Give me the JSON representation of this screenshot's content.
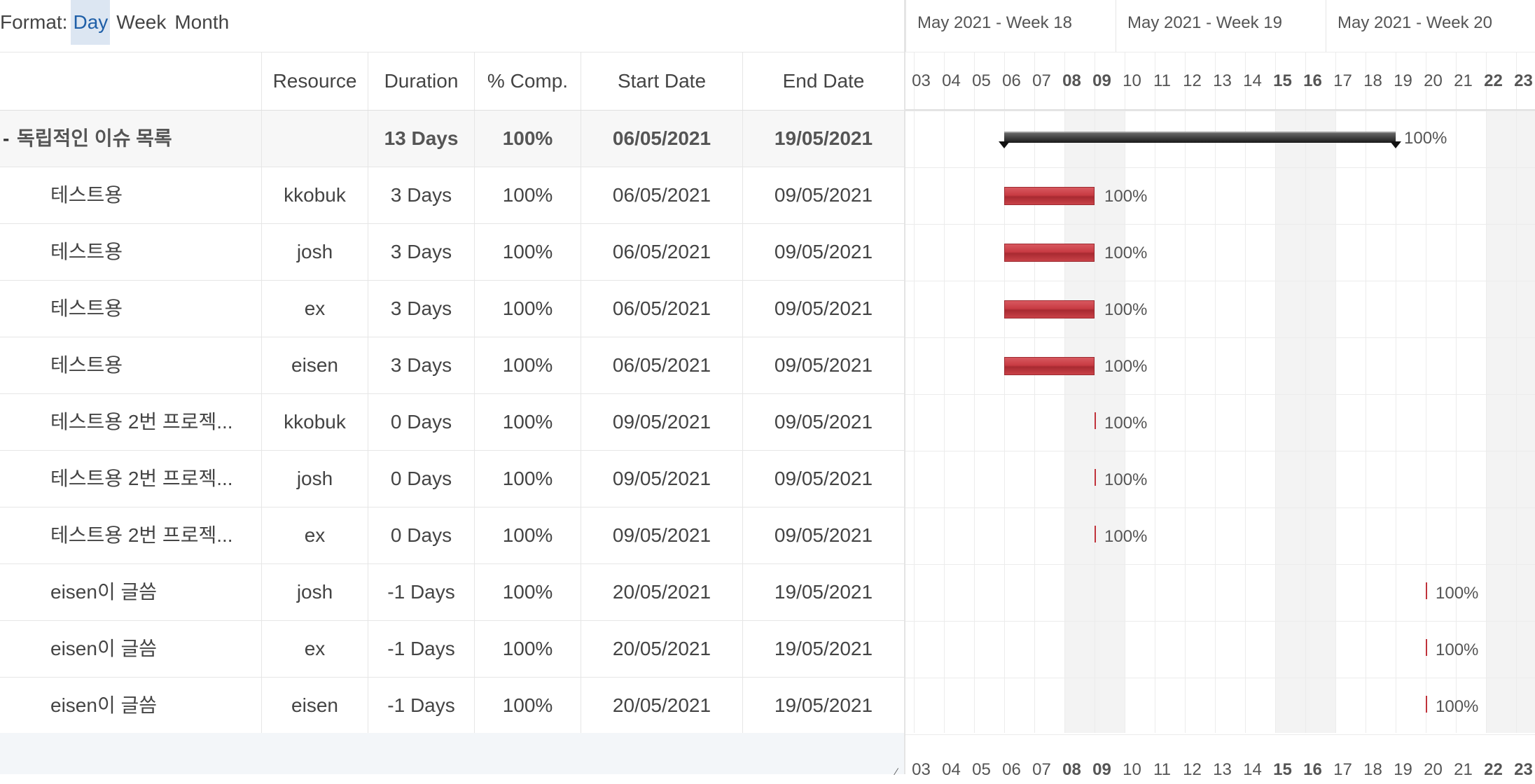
{
  "format": {
    "label": "Format:",
    "options": [
      "Day",
      "Week",
      "Month"
    ],
    "selected": "Day"
  },
  "columns": {
    "name": "",
    "resource": "Resource",
    "duration": "Duration",
    "comp": "% Comp.",
    "start": "Start Date",
    "end": "End Date"
  },
  "group": {
    "toggle": "-",
    "name": "독립적인 이슈 목록",
    "resource": "",
    "duration": "13 Days",
    "comp": "100%",
    "start": "06/05/2021",
    "end": "19/05/2021",
    "bar_label": "100%"
  },
  "tasks": [
    {
      "name": "테스트용",
      "resource": "kkobuk",
      "duration": "3 Days",
      "comp": "100%",
      "start": "06/05/2021",
      "end": "09/05/2021",
      "bar_label": "100%"
    },
    {
      "name": "테스트용",
      "resource": "josh",
      "duration": "3 Days",
      "comp": "100%",
      "start": "06/05/2021",
      "end": "09/05/2021",
      "bar_label": "100%"
    },
    {
      "name": "테스트용",
      "resource": "ex",
      "duration": "3 Days",
      "comp": "100%",
      "start": "06/05/2021",
      "end": "09/05/2021",
      "bar_label": "100%"
    },
    {
      "name": "테스트용",
      "resource": "eisen",
      "duration": "3 Days",
      "comp": "100%",
      "start": "06/05/2021",
      "end": "09/05/2021",
      "bar_label": "100%"
    },
    {
      "name": "테스트용 2번 프로젝...",
      "resource": "kkobuk",
      "duration": "0 Days",
      "comp": "100%",
      "start": "09/05/2021",
      "end": "09/05/2021",
      "bar_label": "100%"
    },
    {
      "name": "테스트용 2번 프로젝...",
      "resource": "josh",
      "duration": "0 Days",
      "comp": "100%",
      "start": "09/05/2021",
      "end": "09/05/2021",
      "bar_label": "100%"
    },
    {
      "name": "테스트용 2번 프로젝...",
      "resource": "ex",
      "duration": "0 Days",
      "comp": "100%",
      "start": "09/05/2021",
      "end": "09/05/2021",
      "bar_label": "100%"
    },
    {
      "name": "eisen이 글씀",
      "resource": "josh",
      "duration": "-1 Days",
      "comp": "100%",
      "start": "20/05/2021",
      "end": "19/05/2021",
      "bar_label": "100%"
    },
    {
      "name": "eisen이 글씀",
      "resource": "ex",
      "duration": "-1 Days",
      "comp": "100%",
      "start": "20/05/2021",
      "end": "19/05/2021",
      "bar_label": "100%"
    },
    {
      "name": "eisen이 글씀",
      "resource": "eisen",
      "duration": "-1 Days",
      "comp": "100%",
      "start": "20/05/2021",
      "end": "19/05/2021",
      "bar_label": "100%"
    }
  ],
  "timeline": {
    "weeks": [
      "May 2021 - Week 18",
      "May 2021 - Week 19",
      "May 2021 - Week 20"
    ],
    "days": [
      "03",
      "04",
      "05",
      "06",
      "07",
      "08",
      "09",
      "10",
      "11",
      "12",
      "13",
      "14",
      "15",
      "16",
      "17",
      "18",
      "19",
      "20",
      "21",
      "22",
      "23"
    ],
    "weekend_days": [
      "08",
      "09",
      "15",
      "16",
      "22",
      "23"
    ]
  },
  "colors": {
    "bar": "#c83b43",
    "group_bar": "#1a1a1a",
    "weekend_band": "#f3f3f3",
    "active_format": "#dce6f2"
  }
}
